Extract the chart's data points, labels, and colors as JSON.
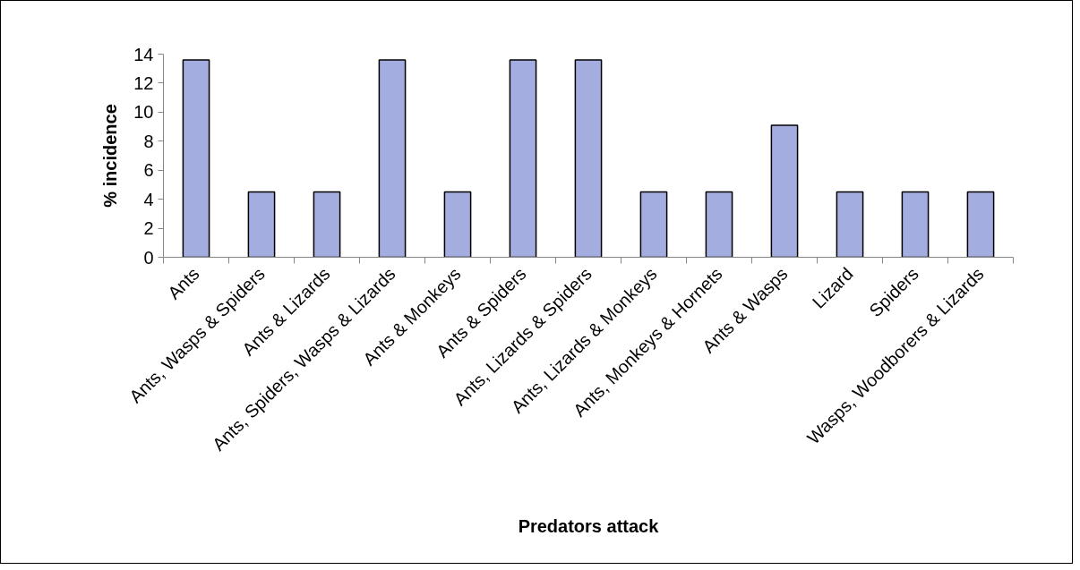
{
  "chart_data": {
    "type": "bar",
    "xlabel": "Predators attack",
    "ylabel": "% incidence",
    "categories": [
      "Ants",
      "Ants, Wasps & Spiders",
      "Ants & Lizards",
      "Ants, Spiders, Wasps & Lizards",
      "Ants & Monkeys",
      "Ants & Spiders",
      "Ants, Lizards & Spiders",
      "Ants, Lizards & Monkeys",
      "Ants, Monkeys & Hornets",
      "Ants & Wasps",
      "Lizard",
      "Spiders",
      "Wasps, Woodborers & Lizards"
    ],
    "values": [
      13.6,
      4.5,
      4.5,
      13.6,
      4.5,
      13.6,
      13.6,
      4.5,
      4.5,
      9.1,
      4.5,
      4.5,
      4.5
    ],
    "color": "#a4addf",
    "ylim": [
      0,
      14
    ],
    "yticks": [
      0,
      2,
      4,
      6,
      8,
      10,
      12,
      14
    ],
    "grid": false
  }
}
